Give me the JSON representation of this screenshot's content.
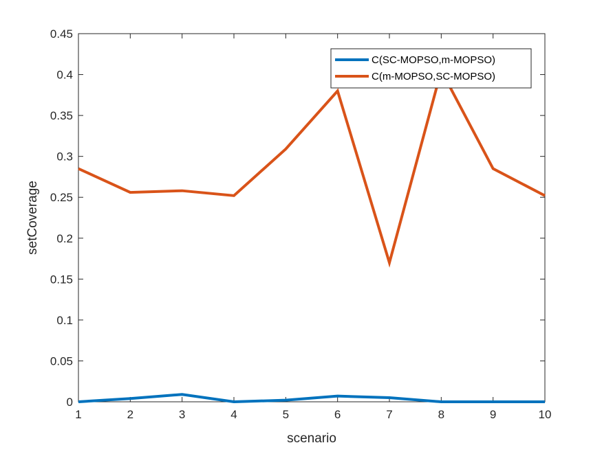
{
  "chart_data": {
    "type": "line",
    "title": "",
    "xlabel": "scenario",
    "ylabel": "setCoverage",
    "x": [
      1,
      2,
      3,
      4,
      5,
      6,
      7,
      8,
      9,
      10
    ],
    "xlim": [
      1,
      10
    ],
    "ylim": [
      0,
      0.45
    ],
    "xticks": [
      "1",
      "2",
      "3",
      "4",
      "5",
      "6",
      "7",
      "8",
      "9",
      "10"
    ],
    "yticks": [
      "0",
      "0.05",
      "0.1",
      "0.15",
      "0.2",
      "0.25",
      "0.3",
      "0.35",
      "0.4",
      "0.45"
    ],
    "grid": false,
    "legend_position": "top-right",
    "series": [
      {
        "name": "C(SC-MOPSO,m-MOPSO)",
        "color": "#0072BD",
        "values": [
          0.0,
          0.004,
          0.009,
          0.0,
          0.002,
          0.007,
          0.005,
          0.0,
          0.0,
          0.0
        ]
      },
      {
        "name": "C(m-MOPSO,SC-MOPSO)",
        "color": "#D95319",
        "values": [
          0.285,
          0.256,
          0.258,
          0.252,
          0.309,
          0.38,
          0.17,
          0.405,
          0.285,
          0.252
        ]
      }
    ]
  }
}
